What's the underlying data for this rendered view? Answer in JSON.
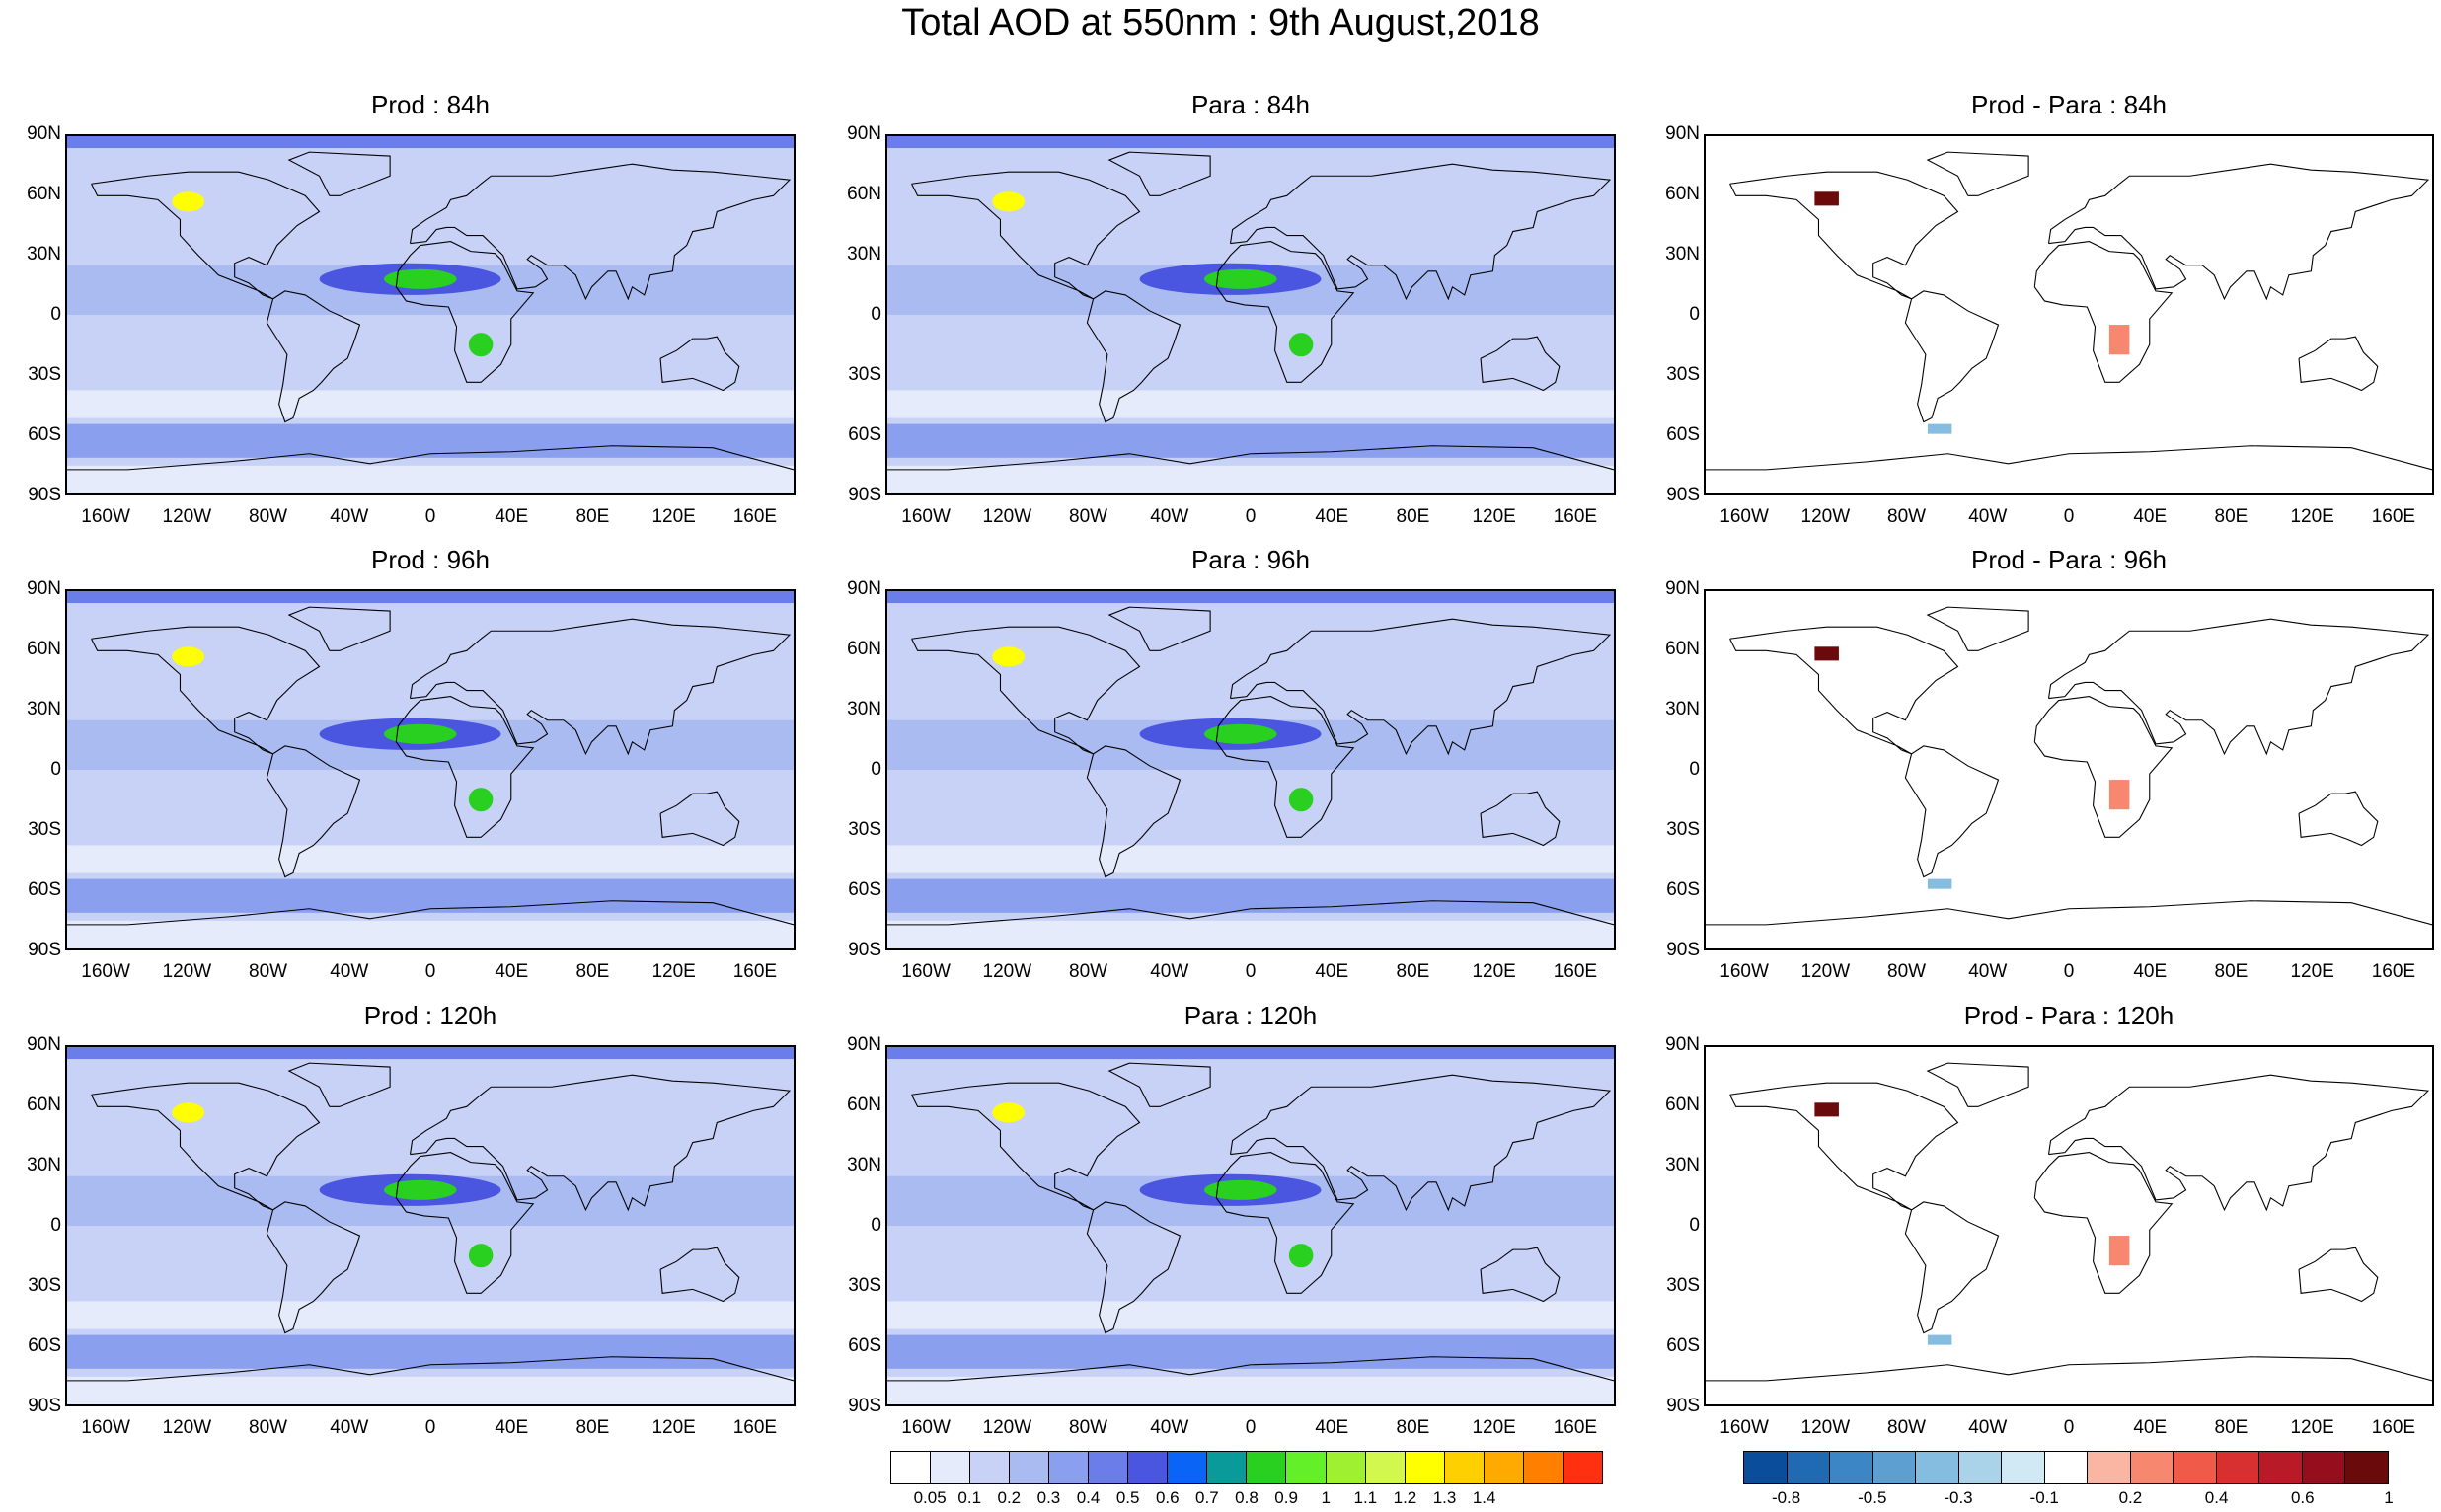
{
  "title": "Total AOD at 550nm : 9th August,2018",
  "lat_ticks": [
    "90N",
    "60N",
    "30N",
    "0",
    "30S",
    "60S",
    "90S"
  ],
  "lon_ticks": [
    "160W",
    "120W",
    "80W",
    "40W",
    "0",
    "40E",
    "80E",
    "120E",
    "160E"
  ],
  "panels": [
    {
      "title": "Prod : 84h",
      "kind": "aod"
    },
    {
      "title": "Para : 84h",
      "kind": "aod"
    },
    {
      "title": "Prod - Para : 84h",
      "kind": "diff"
    },
    {
      "title": "Prod : 96h",
      "kind": "aod"
    },
    {
      "title": "Para : 96h",
      "kind": "aod"
    },
    {
      "title": "Prod - Para : 96h",
      "kind": "diff"
    },
    {
      "title": "Prod : 120h",
      "kind": "aod"
    },
    {
      "title": "Para : 120h",
      "kind": "aod"
    },
    {
      "title": "Prod - Para : 120h",
      "kind": "diff"
    }
  ],
  "aod_colorbar": {
    "colors": [
      "#ffffff",
      "#e6ebfb",
      "#c8d2f7",
      "#aabbf2",
      "#8a9fee",
      "#6a7de8",
      "#4a55e0",
      "#0a64f5",
      "#0a9a9a",
      "#2ad020",
      "#64f028",
      "#9ef030",
      "#d2f850",
      "#ffff00",
      "#ffd000",
      "#ffaa00",
      "#ff8000",
      "#ff3010"
    ],
    "labels": [
      "0.05",
      "0.1",
      "0.2",
      "0.3",
      "0.4",
      "0.5",
      "0.6",
      "0.7",
      "0.8",
      "0.9",
      "1",
      "1.1",
      "1.2",
      "1.3",
      "1.4"
    ]
  },
  "diff_colorbar": {
    "colors": [
      "#0a4d9a",
      "#1f6ab3",
      "#3d86c6",
      "#5e9fd2",
      "#85bde0",
      "#aad3ea",
      "#d1e9f4",
      "#ffffff",
      "#fbb5a3",
      "#f7876e",
      "#f05a48",
      "#d83030",
      "#b81a28",
      "#960e1e",
      "#6b0a0a"
    ],
    "labels": [
      "-0.8",
      "-0.5",
      "-0.3",
      "-0.1",
      "0.2",
      "0.4",
      "0.6",
      "1"
    ]
  }
}
